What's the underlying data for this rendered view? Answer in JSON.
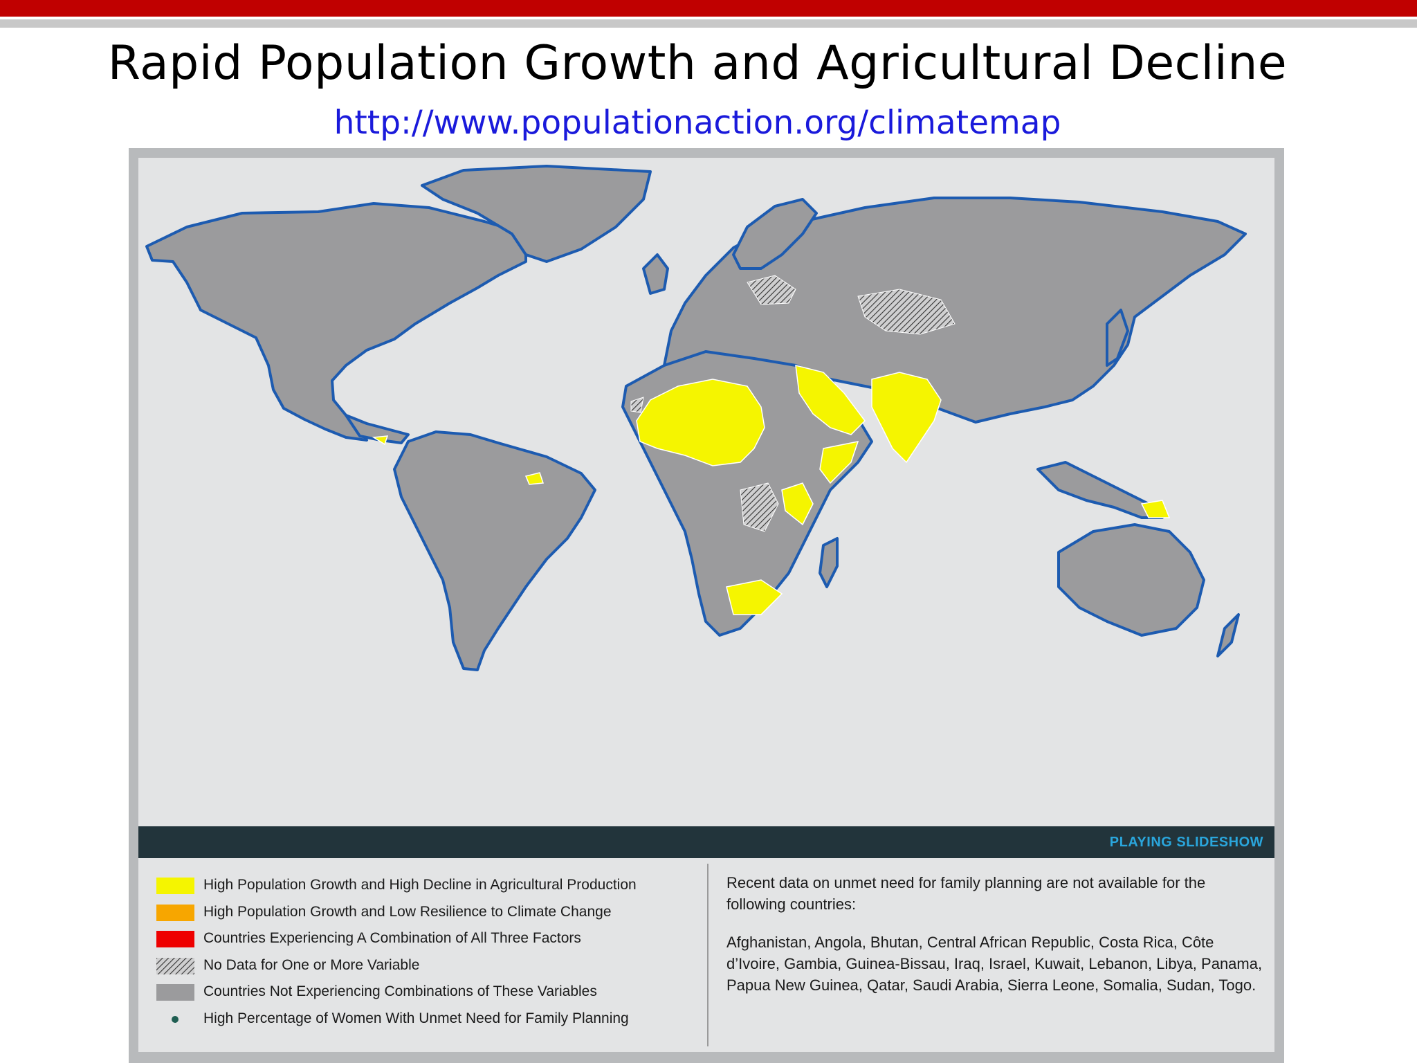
{
  "slide": {
    "title": "Rapid Population Growth and Agricultural Decline",
    "url": "http://www.populationaction.org/climatemap"
  },
  "map": {
    "colors": {
      "ocean": "#e3e4e5",
      "land": "#9b9b9d",
      "coastline": "#1d5bb0",
      "borders": "#ffffff",
      "highlight": "#f5f500"
    },
    "highlighted_regions": [
      "Sahel and West Africa",
      "Arabian Peninsula",
      "South Asia",
      "Horn of Africa",
      "East Africa",
      "Southern Africa",
      "Central America",
      "Guyana",
      "Papua New Guinea"
    ],
    "no_data_regions": [
      "Central Asia",
      "Eastern Europe",
      "Central Africa",
      "Western Sahara"
    ],
    "banner": "PLAYING SLIDESHOW"
  },
  "legend": {
    "items": [
      {
        "label": "High Population Growth and High Decline in Agricultural Production",
        "color": "#f5f500",
        "kind": "swatch"
      },
      {
        "label": "High Population Growth and Low Resilience to Climate Change",
        "color": "#f7a600",
        "kind": "swatch"
      },
      {
        "label": "Countries Experiencing A Combination of All Three Factors",
        "color": "#ee0000",
        "kind": "swatch"
      },
      {
        "label": "No Data for One or More Variable",
        "color": "#cccccc",
        "kind": "hatch"
      },
      {
        "label": "Countries Not Experiencing Combinations of These Variables",
        "color": "#9b9b9d",
        "kind": "swatch"
      },
      {
        "label": "High Percentage of Women With Unmet Need for Family Planning",
        "color": "#1f5e52",
        "kind": "dot"
      }
    ],
    "note_intro": "Recent data on unmet need for family planning are not available for the following countries:",
    "note_countries": "Afghanistan, Angola, Bhutan, Central African Republic, Costa Rica, Côte d’Ivoire, Gambia, Guinea-Bissau, Iraq, Israel, Kuwait, Lebanon, Libya, Panama, Papua New Guinea, Qatar, Saudi Arabia, Sierra Leone, Somalia, Sudan, Togo."
  }
}
